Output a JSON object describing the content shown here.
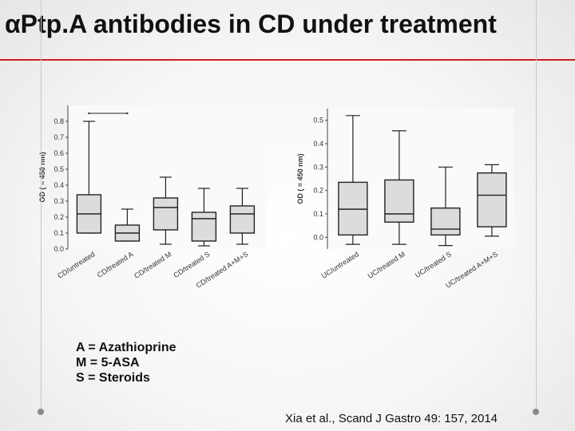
{
  "slide": {
    "title_symbol": "α",
    "title_text": "Ptp.A antibodies in CD under treatment",
    "legend": [
      "A = Azathioprine",
      "M = 5-ASA",
      "S = Steroids"
    ],
    "citation": "Xia et al., Scand J Gastro 49: 157, 2014",
    "accent_color": "#cc1f1f"
  },
  "chart_data": [
    {
      "type": "boxplot",
      "ylabel": "OD ( = 450 nm)",
      "ylim": [
        0,
        0.9
      ],
      "yticks": [
        "0.0",
        "0.1",
        "0.2",
        "0.3",
        "0.4",
        "0.5",
        "0.6",
        "0.7",
        "0.8"
      ],
      "categories": [
        "CD/untreated",
        "CD/treated A",
        "CD/treated M",
        "CD/treated S",
        "CD/treated A+M+S"
      ],
      "boxes": [
        {
          "whisker_low": 0.1,
          "q1": 0.1,
          "median": 0.22,
          "q3": 0.34,
          "whisker_high": 0.8,
          "outlier": 0.85
        },
        {
          "whisker_low": 0.05,
          "q1": 0.05,
          "median": 0.1,
          "q3": 0.15,
          "whisker_high": 0.25,
          "outlier": 0.85
        },
        {
          "whisker_low": 0.03,
          "q1": 0.12,
          "median": 0.26,
          "q3": 0.32,
          "whisker_high": 0.45
        },
        {
          "whisker_low": 0.02,
          "q1": 0.05,
          "median": 0.19,
          "q3": 0.23,
          "whisker_high": 0.38
        },
        {
          "whisker_low": 0.03,
          "q1": 0.1,
          "median": 0.22,
          "q3": 0.27,
          "whisker_high": 0.38
        }
      ]
    },
    {
      "type": "boxplot",
      "ylabel": "OD ( = 450 nm)",
      "ylim": [
        -0.05,
        0.55
      ],
      "yticks": [
        "0.0",
        "0.1",
        "0.2",
        "0.3",
        "0.4",
        "0.5"
      ],
      "categories": [
        "UC/untreated",
        "UC/treated M",
        "UC/treated S",
        "UC/treated A+M+S"
      ],
      "boxes": [
        {
          "whisker_low": -0.03,
          "q1": 0.01,
          "median": 0.12,
          "q3": 0.235,
          "whisker_high": 0.52
        },
        {
          "whisker_low": -0.03,
          "q1": 0.065,
          "median": 0.1,
          "q3": 0.245,
          "whisker_high": 0.455
        },
        {
          "whisker_low": -0.035,
          "q1": 0.01,
          "median": 0.035,
          "q3": 0.125,
          "whisker_high": 0.3
        },
        {
          "whisker_low": 0.005,
          "q1": 0.045,
          "median": 0.18,
          "q3": 0.275,
          "whisker_high": 0.31
        }
      ]
    }
  ]
}
